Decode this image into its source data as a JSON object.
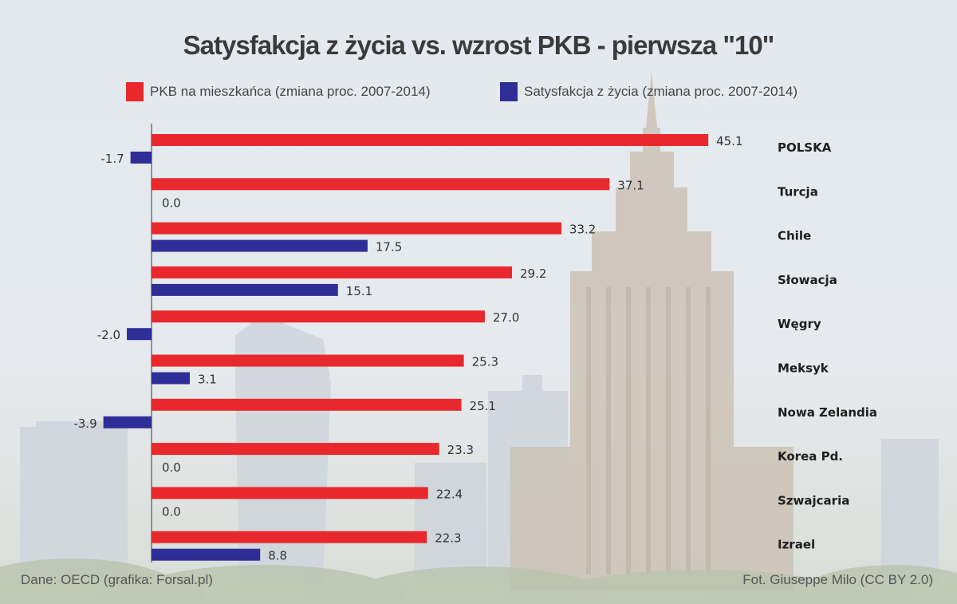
{
  "chart_data": {
    "type": "bar",
    "orientation": "horizontal",
    "title": "Satysfakcja z życia vs. wzrost PKB - pierwsza \"10\"",
    "categories": [
      "POLSKA",
      "Turcja",
      "Chile",
      "Słowacja",
      "Węgry",
      "Meksyk",
      "Nowa Zelandia",
      "Korea Pd.",
      "Szwajcaria",
      "Izrael"
    ],
    "series": [
      {
        "name": "PKB na mieszkańca (zmiana proc. 2007-2014)",
        "color": "#e8282c",
        "values": [
          45.1,
          37.1,
          33.2,
          29.2,
          27.0,
          25.3,
          25.1,
          23.3,
          22.4,
          22.3
        ],
        "labels": [
          "45.1",
          "37.1",
          "33.2",
          "29.2",
          "27.0",
          "25.3",
          "25.1",
          "23.3",
          "22.4",
          "22.3"
        ]
      },
      {
        "name": "Satysfakcja z życia (zmiana proc. 2007-2014)",
        "color": "#2e2e96",
        "values": [
          -1.7,
          0.0,
          17.5,
          15.1,
          -2.0,
          3.1,
          -3.9,
          0.0,
          0.0,
          8.8
        ],
        "labels": [
          "-1.7",
          "0.0",
          "17.5",
          "15.1",
          "-2.0",
          "3.1",
          "-3.9",
          "0.0",
          "0.0",
          "8.8"
        ]
      }
    ],
    "legend_position": "top",
    "grid": false
  },
  "footer": {
    "source": "Dane: OECD (grafika: Forsal.pl)",
    "photo_credit": "Fot. Giuseppe Milo (CC BY 2.0)"
  }
}
